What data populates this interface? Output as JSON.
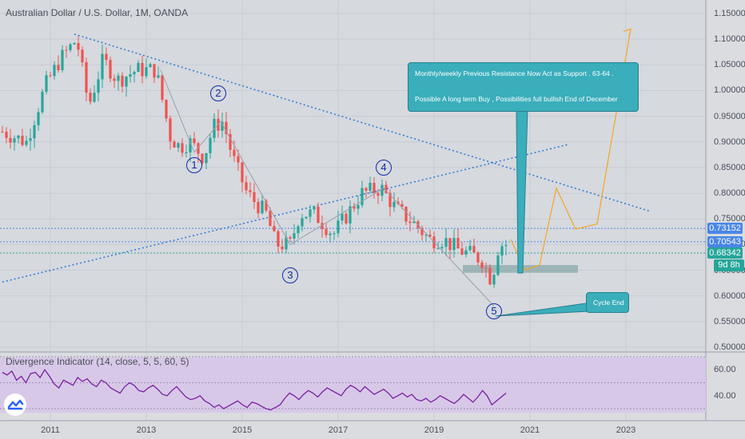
{
  "chart_title": "Australian Dollar / U.S. Dollar, 1M, OANDA",
  "chart_data": [
    {
      "type": "candlestick",
      "title": "Australian Dollar / U.S. Dollar, 1M, OANDA",
      "x_ticks": [
        "2011",
        "2013",
        "2015",
        "2017",
        "2019",
        "2021",
        "2023"
      ],
      "y_ticks": [
        "1.15000",
        "1.10000",
        "1.05000",
        "1.00000",
        "0.95000",
        "0.90000",
        "0.85000",
        "0.80000",
        "0.75000",
        "0.70000",
        "0.65000",
        "0.60000",
        "0.55000",
        "0.50000"
      ],
      "ylim": [
        0.5,
        1.15
      ],
      "price_labels": [
        {
          "value": 0.73152,
          "text": "0.73152",
          "color": "#4a86e8"
        },
        {
          "value": 0.70543,
          "text": "0.70543",
          "color": "#4a86e8"
        },
        {
          "value": 0.68342,
          "text": "0.68342",
          "color": "#26a69a"
        }
      ],
      "countdown": "9d 8h",
      "close_path": [
        [
          2010.0,
          0.92
        ],
        [
          2010.5,
          0.9
        ],
        [
          2010.9,
          1.01
        ],
        [
          2011.2,
          1.06
        ],
        [
          2011.55,
          1.1
        ],
        [
          2011.8,
          0.97
        ],
        [
          2012.1,
          1.06
        ],
        [
          2012.4,
          1.02
        ],
        [
          2012.8,
          1.04
        ],
        [
          2013.2,
          1.04
        ],
        [
          2013.5,
          0.91
        ],
        [
          2013.7,
          0.89
        ],
        [
          2013.9,
          0.9
        ],
        [
          2014.2,
          0.87
        ],
        [
          2014.4,
          0.93
        ],
        [
          2014.6,
          0.94
        ],
        [
          2014.8,
          0.87
        ],
        [
          2015.1,
          0.8
        ],
        [
          2015.5,
          0.76
        ],
        [
          2015.7,
          0.7
        ],
        [
          2016.0,
          0.7
        ],
        [
          2016.2,
          0.76
        ],
        [
          2016.5,
          0.76
        ],
        [
          2016.9,
          0.72
        ],
        [
          2017.2,
          0.76
        ],
        [
          2017.5,
          0.8
        ],
        [
          2017.9,
          0.81
        ],
        [
          2018.2,
          0.77
        ],
        [
          2018.6,
          0.74
        ],
        [
          2018.9,
          0.71
        ],
        [
          2019.2,
          0.71
        ],
        [
          2019.5,
          0.69
        ],
        [
          2019.8,
          0.68
        ],
        [
          2020.0,
          0.67
        ],
        [
          2020.2,
          0.63
        ],
        [
          2020.35,
          0.7
        ],
        [
          2020.5,
          0.7
        ]
      ],
      "wave_labels": [
        {
          "text": "1",
          "x": 2014.0,
          "y": 0.855
        },
        {
          "text": "2",
          "x": 2014.5,
          "y": 0.995
        },
        {
          "text": "3",
          "x": 2016.0,
          "y": 0.64
        },
        {
          "text": "4",
          "x": 2017.95,
          "y": 0.85
        },
        {
          "text": "5",
          "x": 2020.25,
          "y": 0.57
        }
      ],
      "projection": [
        [
          2020.6,
          0.71
        ],
        [
          2020.9,
          0.65
        ],
        [
          2021.2,
          0.66
        ],
        [
          2021.55,
          0.81
        ],
        [
          2021.95,
          0.73
        ],
        [
          2022.4,
          0.74
        ],
        [
          2023.1,
          1.12
        ]
      ],
      "support_zone": {
        "y_top": 0.66,
        "y_bottom": 0.645,
        "x_start": 2019.6,
        "x_end": 2022.0
      },
      "trendlines": [
        {
          "style": "descending resistance",
          "from": [
            2011.5,
            1.11
          ],
          "to": [
            2023.5,
            0.765
          ]
        },
        {
          "style": "rising support",
          "from": [
            2010.0,
            0.627
          ],
          "to": [
            2021.8,
            0.895
          ]
        }
      ],
      "annotations": [
        {
          "text": "Monthly/weekly Previous Resistance Now Act as Support . 63-64 ."
        },
        {
          "text": "Possible A long term Buy , Possibilities full bullish End of December"
        },
        {
          "text": "Cycle End"
        }
      ]
    },
    {
      "type": "line",
      "title": "Divergence Indicator (14, close, 5, 5, 60, 5)",
      "y_ticks": [
        "60.00",
        "40.00"
      ],
      "ylim": [
        30,
        70
      ],
      "values": [
        58,
        56,
        59,
        52,
        55,
        50,
        57,
        58,
        54,
        60,
        55,
        49,
        46,
        52,
        50,
        48,
        54,
        51,
        53,
        49,
        47,
        52,
        50,
        46,
        44,
        42,
        47,
        50,
        48,
        44,
        43,
        46,
        48,
        45,
        41,
        40,
        44,
        47,
        43,
        39,
        37,
        38,
        40,
        36,
        34,
        31,
        33,
        30,
        32,
        34,
        36,
        33,
        31,
        35,
        34,
        32,
        30,
        29,
        31,
        33,
        38,
        42,
        40,
        37,
        41,
        44,
        42,
        39,
        43,
        46,
        44,
        42,
        40,
        45,
        48,
        46,
        43,
        47,
        44,
        41,
        43,
        45,
        42,
        38,
        40,
        42,
        39,
        41,
        37,
        36,
        38,
        35,
        37,
        40,
        38,
        36,
        34,
        37,
        41,
        38,
        35,
        39,
        44,
        40,
        33,
        36,
        39,
        42
      ]
    }
  ],
  "rsi_title": "Divergence Indicator (14, close, 5, 5, 60, 5)",
  "callout_main_line1": "Monthly/weekly Previous Resistance Now Act as Support . 63-64 .",
  "callout_main_line2": "Possible A long term Buy , Possibilities full bullish End of December",
  "callout_cycle": "Cycle End"
}
